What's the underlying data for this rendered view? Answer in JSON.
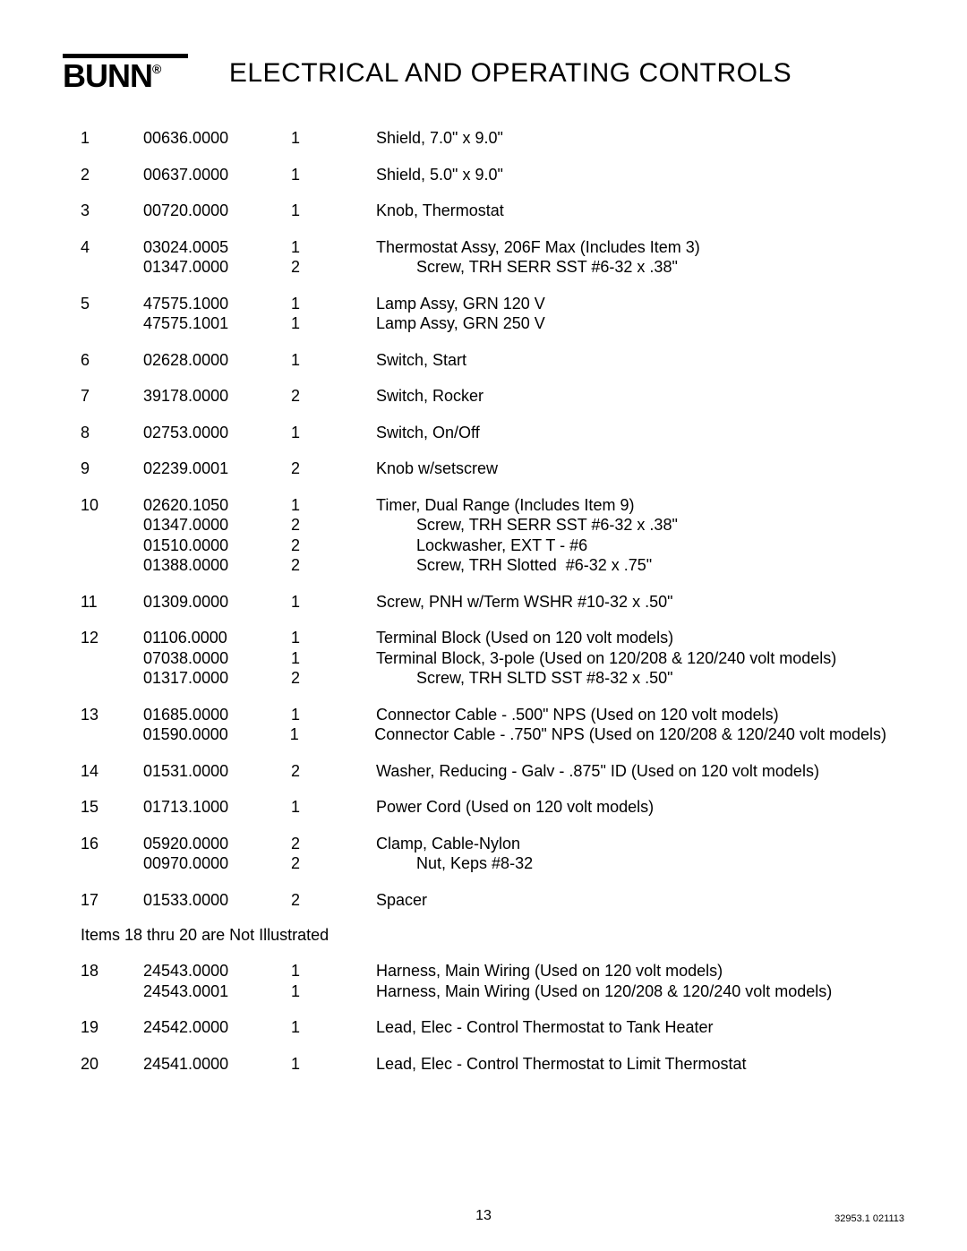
{
  "logo": {
    "brand": "BUNN",
    "reg": "®"
  },
  "title": "ELECTRICAL AND OPERATING CONTROLS",
  "note": "Items 18 thru 20  are Not Illustrated",
  "footer": {
    "page": "13",
    "doc_id": "32953.1 021113"
  },
  "groups": [
    {
      "note": false,
      "rows": [
        {
          "item": "1",
          "part": "00636.0000",
          "qty": "1",
          "desc": "Shield, 7.0\" x 9.0\""
        }
      ]
    },
    {
      "note": false,
      "rows": [
        {
          "item": "2",
          "part": "00637.0000",
          "qty": "1",
          "desc": "Shield, 5.0\" x 9.0\""
        }
      ]
    },
    {
      "note": false,
      "rows": [
        {
          "item": "3",
          "part": "00720.0000",
          "qty": "1",
          "desc": "Knob, Thermostat"
        }
      ]
    },
    {
      "note": false,
      "rows": [
        {
          "item": "4",
          "part": "03024.0005",
          "qty": "1",
          "desc": "Thermostat Assy, 206F Max (Includes Item 3)"
        },
        {
          "item": "",
          "part": "01347.0000",
          "qty": "2",
          "desc": "         Screw, TRH SERR SST #6-32 x .38\""
        }
      ]
    },
    {
      "note": false,
      "rows": [
        {
          "item": "5",
          "part": "47575.1000",
          "qty": "1",
          "desc": "Lamp Assy, GRN 120 V"
        },
        {
          "item": "",
          "part": "47575.1001",
          "qty": "1",
          "desc": "Lamp Assy, GRN 250 V"
        }
      ]
    },
    {
      "note": false,
      "rows": [
        {
          "item": "6",
          "part": "02628.0000",
          "qty": "1",
          "desc": "Switch, Start"
        }
      ]
    },
    {
      "note": false,
      "rows": [
        {
          "item": "7",
          "part": "39178.0000",
          "qty": "2",
          "desc": "Switch, Rocker"
        }
      ]
    },
    {
      "note": false,
      "rows": [
        {
          "item": "8",
          "part": "02753.0000",
          "qty": "1",
          "desc": "Switch, On/Off"
        }
      ]
    },
    {
      "note": false,
      "rows": [
        {
          "item": "9",
          "part": "02239.0001",
          "qty": "2",
          "desc": "Knob w/setscrew"
        }
      ]
    },
    {
      "note": false,
      "rows": [
        {
          "item": "10",
          "part": "02620.1050",
          "qty": "1",
          "desc": "Timer, Dual Range (Includes Item 9)"
        },
        {
          "item": "",
          "part": "01347.0000",
          "qty": "2",
          "desc": "         Screw, TRH SERR SST #6-32 x .38\""
        },
        {
          "item": "",
          "part": "01510.0000",
          "qty": "2",
          "desc": "         Lockwasher, EXT T - #6"
        },
        {
          "item": "",
          "part": "01388.0000",
          "qty": "2",
          "desc": "         Screw, TRH Slotted  #6-32 x .75\""
        }
      ]
    },
    {
      "note": false,
      "rows": [
        {
          "item": "11",
          "part": "01309.0000",
          "qty": "1",
          "desc": "Screw, PNH w/Term WSHR #10-32 x .50\""
        }
      ]
    },
    {
      "note": false,
      "rows": [
        {
          "item": "12",
          "part": "01106.0000",
          "qty": "1",
          "desc": "Terminal Block (Used on 120 volt models)"
        },
        {
          "item": "",
          "part": "07038.0000",
          "qty": "1",
          "desc": "Terminal Block, 3-pole (Used on 120/208 & 120/240 volt models)"
        },
        {
          "item": "",
          "part": "01317.0000",
          "qty": "2",
          "desc": "         Screw, TRH SLTD SST #8-32 x .50\""
        }
      ]
    },
    {
      "note": false,
      "rows": [
        {
          "item": "13",
          "part": "01685.0000",
          "qty": "1",
          "desc": "Connector Cable - .500\" NPS (Used on 120 volt models)"
        },
        {
          "item": "",
          "part": "01590.0000",
          "qty": "1",
          "desc": "Connector Cable - .750\" NPS (Used on 120/208 & 120/240 volt models)"
        }
      ]
    },
    {
      "note": false,
      "rows": [
        {
          "item": "14",
          "part": "01531.0000",
          "qty": "2",
          "desc": "Washer, Reducing - Galv - .875\" ID (Used on 120 volt models)"
        }
      ]
    },
    {
      "note": false,
      "rows": [
        {
          "item": "15",
          "part": "01713.1000",
          "qty": "1",
          "desc": "Power Cord (Used on 120 volt models)"
        }
      ]
    },
    {
      "note": false,
      "rows": [
        {
          "item": "16",
          "part": "05920.0000",
          "qty": "2",
          "desc": "Clamp, Cable-Nylon"
        },
        {
          "item": "",
          "part": "00970.0000",
          "qty": "2",
          "desc": "         Nut, Keps #8-32"
        }
      ]
    },
    {
      "note": false,
      "rows": [
        {
          "item": "17",
          "part": "01533.0000",
          "qty": "2",
          "desc": "Spacer"
        }
      ]
    },
    {
      "note": true,
      "rows": []
    },
    {
      "note": false,
      "rows": [
        {
          "item": "18",
          "part": "24543.0000",
          "qty": "1",
          "desc": "Harness, Main Wiring (Used on 120 volt models)"
        },
        {
          "item": "",
          "part": "24543.0001",
          "qty": "1",
          "desc": "Harness, Main Wiring (Used on 120/208 & 120/240 volt models)"
        }
      ]
    },
    {
      "note": false,
      "rows": [
        {
          "item": "19",
          "part": "24542.0000",
          "qty": "1",
          "desc": "Lead, Elec - Control Thermostat to Tank Heater"
        }
      ]
    },
    {
      "note": false,
      "rows": [
        {
          "item": "20",
          "part": "24541.0000",
          "qty": "1",
          "desc": "Lead, Elec - Control Thermostat to Limit Thermostat"
        }
      ]
    }
  ]
}
